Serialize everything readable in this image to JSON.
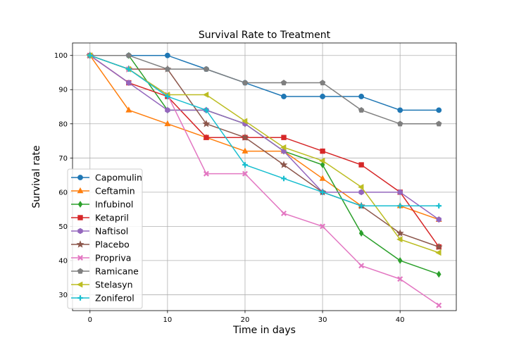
{
  "chart_data": {
    "type": "line",
    "title": "Survival Rate to Treatment",
    "xlabel": "Time in days",
    "ylabel": "Survival rate",
    "x": [
      0,
      5,
      10,
      15,
      20,
      25,
      30,
      35,
      40,
      45
    ],
    "xlim": [
      -2.25,
      47.25
    ],
    "ylim": [
      25.35,
      103.65
    ],
    "xticks": [
      0,
      10,
      20,
      30,
      40
    ],
    "yticks": [
      30,
      40,
      50,
      60,
      70,
      80,
      90,
      100
    ],
    "grid": true,
    "legend_position": "lower-left",
    "series": [
      {
        "name": "Capomulin",
        "color": "#1f77b4",
        "marker": "circle",
        "values": [
          100,
          100,
          100,
          96,
          92,
          88,
          88,
          88,
          84,
          84
        ]
      },
      {
        "name": "Ceftamin",
        "color": "#ff7f0e",
        "marker": "triangle-up",
        "values": [
          100,
          84,
          80,
          76,
          72,
          72,
          64,
          56,
          56,
          52
        ]
      },
      {
        "name": "Infubinol",
        "color": "#2ca02c",
        "marker": "diamond",
        "values": [
          100,
          100,
          84,
          84,
          80,
          72,
          68,
          48,
          40,
          36
        ]
      },
      {
        "name": "Ketapril",
        "color": "#d62728",
        "marker": "square",
        "values": [
          100,
          92,
          88,
          76,
          76,
          76,
          72,
          68,
          60,
          44
        ]
      },
      {
        "name": "Naftisol",
        "color": "#9467bd",
        "marker": "hexagon",
        "values": [
          100,
          92,
          84,
          84,
          80,
          72,
          60,
          60,
          60,
          52
        ]
      },
      {
        "name": "Placebo",
        "color": "#8c564b",
        "marker": "star",
        "values": [
          100,
          96,
          96,
          80,
          76,
          68,
          60,
          56,
          48,
          44
        ]
      },
      {
        "name": "Propriva",
        "color": "#e377c2",
        "marker": "x",
        "values": [
          100,
          96,
          88.5,
          65.4,
          65.4,
          53.8,
          50,
          38.5,
          34.6,
          26.9
        ]
      },
      {
        "name": "Ramicane",
        "color": "#7f7f7f",
        "marker": "pentagon",
        "values": [
          100,
          100,
          96,
          96,
          92,
          92,
          92,
          84,
          80,
          80
        ]
      },
      {
        "name": "Stelasyn",
        "color": "#bcbd22",
        "marker": "triangle-left",
        "values": [
          100,
          96,
          88.5,
          88.5,
          80.8,
          73.1,
          69.2,
          61.5,
          46.2,
          42.3
        ]
      },
      {
        "name": "Zoniferol",
        "color": "#17becf",
        "marker": "plus",
        "values": [
          100,
          96,
          88,
          84,
          68,
          64,
          60,
          56,
          56,
          56
        ]
      }
    ]
  }
}
